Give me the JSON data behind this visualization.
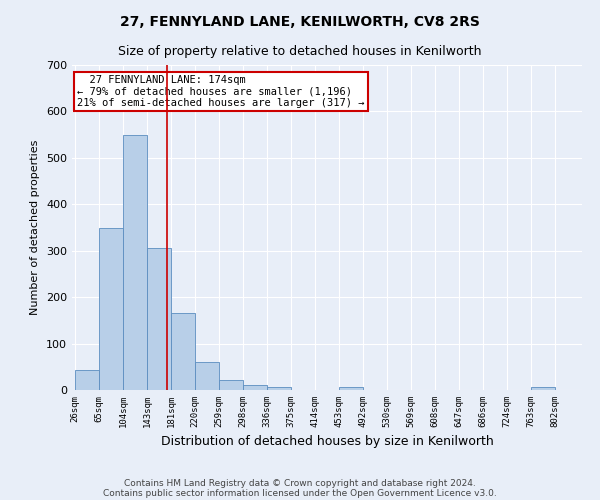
{
  "title1": "27, FENNYLAND LANE, KENILWORTH, CV8 2RS",
  "title2": "Size of property relative to detached houses in Kenilworth",
  "xlabel": "Distribution of detached houses by size in Kenilworth",
  "ylabel": "Number of detached properties",
  "bar_values": [
    43,
    350,
    550,
    305,
    165,
    60,
    22,
    10,
    7,
    0,
    0,
    6,
    0,
    0,
    0,
    0,
    0,
    0,
    0,
    6,
    0
  ],
  "bin_edges": [
    26,
    65,
    104,
    143,
    181,
    220,
    259,
    298,
    336,
    375,
    414,
    453,
    492,
    530,
    569,
    608,
    647,
    686,
    724,
    763,
    802,
    841
  ],
  "tick_labels": [
    "26sqm",
    "65sqm",
    "104sqm",
    "143sqm",
    "181sqm",
    "220sqm",
    "259sqm",
    "298sqm",
    "336sqm",
    "375sqm",
    "414sqm",
    "453sqm",
    "492sqm",
    "530sqm",
    "569sqm",
    "608sqm",
    "647sqm",
    "686sqm",
    "724sqm",
    "763sqm",
    "802sqm"
  ],
  "bar_color": "#b8cfe8",
  "bar_edge_color": "#5b8dc0",
  "background_color": "#e8eef8",
  "grid_color": "#ffffff",
  "vline_x": 174,
  "vline_color": "#cc0000",
  "ylim": [
    0,
    700
  ],
  "annotation_line1": "  27 FENNYLAND LANE: 174sqm",
  "annotation_line2": "← 79% of detached houses are smaller (1,196)",
  "annotation_line3": "21% of semi-detached houses are larger (317) →",
  "annotation_box_color": "#ffffff",
  "annotation_box_edge": "#cc0000",
  "footer1": "Contains HM Land Registry data © Crown copyright and database right 2024.",
  "footer2": "Contains public sector information licensed under the Open Government Licence v3.0.",
  "title1_fontsize": 10,
  "title2_fontsize": 9,
  "ylabel_fontsize": 8,
  "xlabel_fontsize": 9,
  "annotation_fontsize": 7.5,
  "footer_fontsize": 6.5,
  "ytick_fontsize": 8,
  "xtick_fontsize": 6.5
}
